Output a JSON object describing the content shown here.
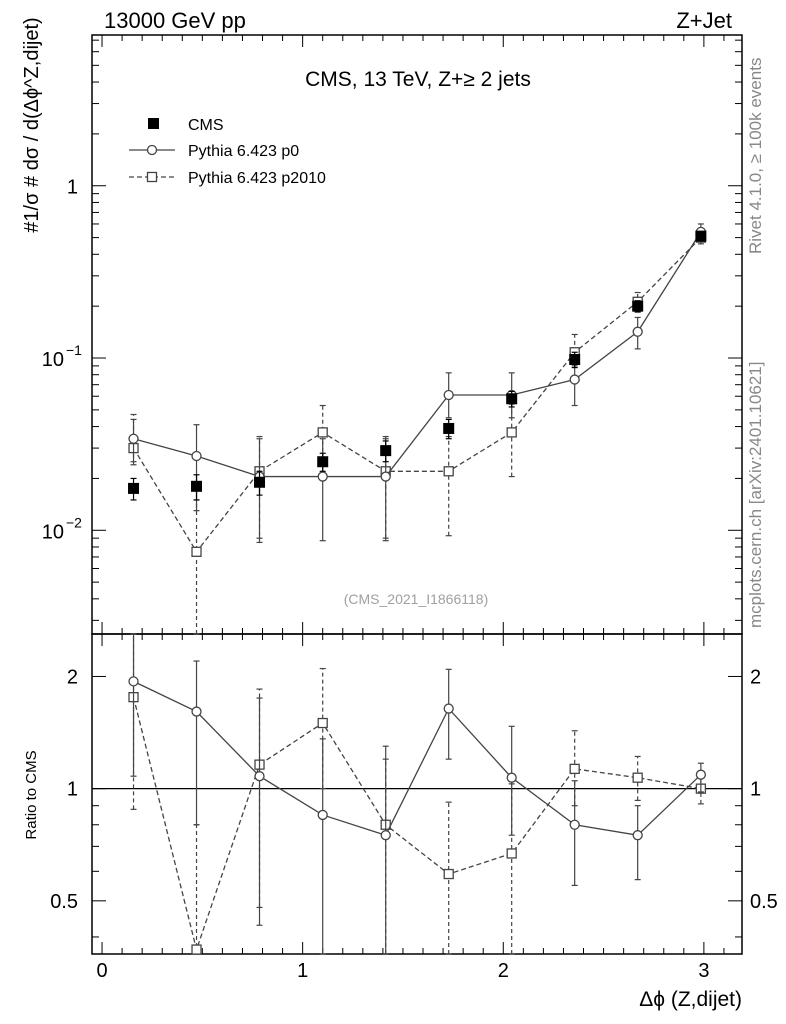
{
  "header": {
    "left_label": "13000 GeV pp",
    "right_label": "Z+Jet"
  },
  "side_labels": {
    "top": "Rivet 4.1.0, ≥ 100k events",
    "bottom": "mcplots.cern.ch [arXiv:2401.10621]"
  },
  "chart_data": {
    "type": "line",
    "title": "CMS, 13 TeV, Z+≥ 2 jets",
    "analysis_tag": "(CMS_2021_I1866118)",
    "xlabel": "Δϕ (Z,dijet)",
    "ylabel": "#1/σ # dσ / d(Δϕ^Z,dijet)",
    "ratio_ylabel": "Ratio to CMS",
    "xlim": [
      -0.05,
      3.19
    ],
    "ylim": [
      0.0025,
      7.5
    ],
    "ratio_ylim": [
      0.36,
      2.6
    ],
    "x_ticks": [
      {
        "v": 0,
        "label": "0"
      },
      {
        "v": 1,
        "label": "1"
      },
      {
        "v": 2,
        "label": "2"
      },
      {
        "v": 3,
        "label": "3"
      }
    ],
    "y_ticks": [
      {
        "v": 1,
        "base": "1",
        "exp": ""
      },
      {
        "v": 0.1,
        "base": "10",
        "exp": "−1"
      },
      {
        "v": 0.01,
        "base": "10",
        "exp": "−2"
      }
    ],
    "ratio_ticks": [
      {
        "v": 0.5,
        "label": "0.5"
      },
      {
        "v": 1,
        "label": "1"
      },
      {
        "v": 2,
        "label": "2"
      }
    ],
    "x": [
      0.157,
      0.471,
      0.785,
      1.1,
      1.414,
      1.728,
      2.042,
      2.356,
      2.67,
      2.985
    ],
    "series": [
      {
        "name": "CMS",
        "marker": "filled-square",
        "values": [
          0.0175,
          0.018,
          0.019,
          0.025,
          0.029,
          0.039,
          0.058,
          0.098,
          0.2,
          0.51
        ],
        "err_lo": [
          0.015,
          0.015,
          0.016,
          0.022,
          0.025,
          0.034,
          0.052,
          0.088,
          0.185,
          0.49
        ],
        "err_hi": [
          0.02,
          0.021,
          0.022,
          0.028,
          0.033,
          0.044,
          0.064,
          0.108,
          0.215,
          0.53
        ]
      },
      {
        "name": "Pythia 6.423 p0",
        "marker": "open-circle",
        "line": "solid",
        "values": [
          0.034,
          0.027,
          0.0205,
          0.0205,
          0.0205,
          0.061,
          0.061,
          0.075,
          0.142,
          0.54
        ],
        "err_lo": [
          0.025,
          0.013,
          0.009,
          0.0087,
          0.0087,
          0.045,
          0.045,
          0.053,
          0.113,
          0.48
        ],
        "err_hi": [
          0.044,
          0.041,
          0.034,
          0.034,
          0.034,
          0.082,
          0.082,
          0.1,
          0.172,
          0.6
        ]
      },
      {
        "name": "Pythia 6.423 p2010",
        "marker": "open-square",
        "line": "dashed",
        "values": [
          0.03,
          0.0075,
          0.022,
          0.037,
          0.022,
          0.022,
          0.037,
          0.108,
          0.212,
          0.5
        ],
        "err_lo": [
          0.024,
          0.0005,
          0.0085,
          0.026,
          0.009,
          0.0093,
          0.0205,
          0.09,
          0.185,
          0.46
        ],
        "err_hi": [
          0.047,
          0.015,
          0.035,
          0.053,
          0.035,
          0.035,
          0.054,
          0.137,
          0.24,
          0.56
        ]
      }
    ],
    "ratio_series": [
      {
        "name": "Pythia 6.423 p0",
        "marker": "open-circle",
        "line": "solid",
        "values": [
          1.94,
          1.61,
          1.08,
          0.85,
          0.75,
          1.64,
          1.07,
          0.8,
          0.75,
          1.09
        ],
        "err_lo": [
          1.08,
          0.8,
          0.43,
          0.3,
          0.3,
          1.2,
          0.75,
          0.55,
          0.57,
          0.98
        ],
        "err_hi": [
          2.6,
          2.2,
          1.75,
          1.36,
          1.3,
          2.09,
          1.47,
          1.05,
          0.9,
          1.17
        ]
      },
      {
        "name": "Pythia 6.423 p2010",
        "marker": "open-square",
        "line": "dashed",
        "values": [
          1.76,
          0.37,
          1.16,
          1.5,
          0.8,
          0.59,
          0.67,
          1.13,
          1.07,
          1.0
        ],
        "err_lo": [
          0.88,
          0.3,
          0.48,
          1.0,
          0.3,
          0.3,
          0.3,
          0.9,
          0.93,
          0.91
        ],
        "err_hi": [
          2.7,
          0.8,
          1.85,
          2.1,
          1.2,
          0.92,
          1.03,
          1.43,
          1.22,
          1.1
        ]
      }
    ]
  }
}
